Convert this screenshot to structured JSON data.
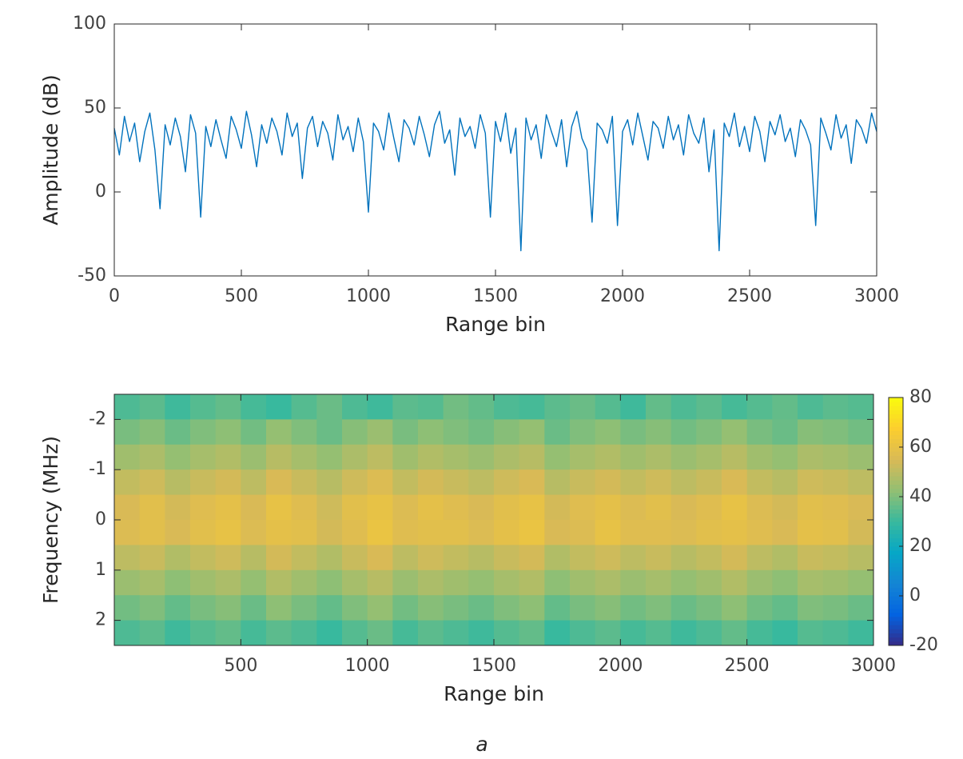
{
  "caption": "a",
  "chart_data": [
    {
      "type": "line",
      "xlabel": "Range bin",
      "ylabel": "Amplitude (dB)",
      "xlim": [
        0,
        3000
      ],
      "ylim": [
        -50,
        100
      ],
      "xticks": [
        0,
        500,
        1000,
        1500,
        2000,
        2500,
        3000
      ],
      "yticks": [
        -50,
        0,
        50,
        100
      ],
      "x": [
        0,
        20,
        40,
        60,
        80,
        100,
        120,
        140,
        160,
        180,
        200,
        220,
        240,
        260,
        280,
        300,
        320,
        340,
        360,
        380,
        400,
        420,
        440,
        460,
        480,
        500,
        520,
        540,
        560,
        580,
        600,
        620,
        640,
        660,
        680,
        700,
        720,
        740,
        760,
        780,
        800,
        820,
        840,
        860,
        880,
        900,
        920,
        940,
        960,
        980,
        1000,
        1020,
        1040,
        1060,
        1080,
        1100,
        1120,
        1140,
        1160,
        1180,
        1200,
        1220,
        1240,
        1260,
        1280,
        1300,
        1320,
        1340,
        1360,
        1380,
        1400,
        1420,
        1440,
        1460,
        1480,
        1500,
        1520,
        1540,
        1560,
        1580,
        1600,
        1620,
        1640,
        1660,
        1680,
        1700,
        1720,
        1740,
        1760,
        1780,
        1800,
        1820,
        1840,
        1860,
        1880,
        1900,
        1920,
        1940,
        1960,
        1980,
        2000,
        2020,
        2040,
        2060,
        2080,
        2100,
        2120,
        2140,
        2160,
        2180,
        2200,
        2220,
        2240,
        2260,
        2280,
        2300,
        2320,
        2340,
        2360,
        2380,
        2400,
        2420,
        2440,
        2460,
        2480,
        2500,
        2520,
        2540,
        2560,
        2580,
        2600,
        2620,
        2640,
        2660,
        2680,
        2700,
        2720,
        2740,
        2760,
        2780,
        2800,
        2820,
        2840,
        2860,
        2880,
        2900,
        2920,
        2940,
        2960,
        2980,
        3000
      ],
      "series": [
        {
          "color": "#0072bd",
          "values": [
            38,
            22,
            45,
            30,
            41,
            18,
            36,
            47,
            25,
            -10,
            40,
            28,
            44,
            33,
            12,
            46,
            35,
            -15,
            39,
            27,
            43,
            31,
            20,
            45,
            37,
            26,
            48,
            34,
            15,
            40,
            29,
            44,
            36,
            22,
            47,
            33,
            41,
            8,
            38,
            45,
            27,
            42,
            35,
            19,
            46,
            31,
            39,
            24,
            44,
            30,
            -12,
            41,
            36,
            25,
            47,
            32,
            18,
            43,
            38,
            28,
            45,
            34,
            21,
            40,
            48,
            29,
            37,
            10,
            44,
            33,
            39,
            26,
            46,
            35,
            -15,
            42,
            30,
            47,
            23,
            38,
            -35,
            44,
            31,
            40,
            20,
            46,
            36,
            27,
            43,
            15,
            39,
            48,
            32,
            25,
            -18,
            41,
            37,
            29,
            45,
            -20,
            36,
            43,
            28,
            47,
            33,
            19,
            42,
            38,
            26,
            45,
            31,
            40,
            22,
            46,
            35,
            29,
            44,
            12,
            37,
            -35,
            41,
            33,
            47,
            27,
            39,
            24,
            45,
            36,
            18,
            42,
            34,
            46,
            30,
            38,
            21,
            43,
            37,
            28,
            -20,
            44,
            35,
            25,
            46,
            32,
            40,
            17,
            43,
            38,
            29,
            47,
            36
          ]
        }
      ]
    },
    {
      "type": "heatmap",
      "xlabel": "Range bin",
      "ylabel": "Frequency (MHz)",
      "xlim": [
        0,
        3000
      ],
      "ylim": [
        -2.5,
        2.5
      ],
      "y_reversed": true,
      "xticks": [
        500,
        1000,
        1500,
        2000,
        2500,
        3000
      ],
      "yticks": [
        -2,
        -1,
        0,
        1,
        2
      ],
      "clim": [
        -20,
        80
      ],
      "cticks": [
        -20,
        0,
        20,
        40,
        60,
        80
      ],
      "colormap": [
        "#352a87",
        "#0363e1",
        "#1485d4",
        "#06a7c6",
        "#38b99e",
        "#92bf73",
        "#d9ba56",
        "#fcce2e",
        "#f9fb0e"
      ],
      "x": [
        50,
        150,
        250,
        350,
        450,
        550,
        650,
        750,
        850,
        950,
        1050,
        1150,
        1250,
        1350,
        1450,
        1550,
        1650,
        1750,
        1850,
        1950,
        2050,
        2150,
        2250,
        2350,
        2450,
        2550,
        2650,
        2750,
        2850,
        2950
      ],
      "y": [
        -2.25,
        -1.75,
        -1.25,
        -0.75,
        -0.25,
        0.25,
        0.75,
        1.25,
        1.75,
        2.25
      ],
      "z": [
        [
          33,
          35,
          31,
          34,
          36,
          32,
          30,
          34,
          37,
          33,
          31,
          35,
          34,
          38,
          36,
          33,
          32,
          35,
          37,
          34,
          31,
          36,
          33,
          35,
          32,
          34,
          36,
          33,
          35,
          34
        ],
        [
          39,
          41,
          37,
          40,
          42,
          38,
          43,
          40,
          37,
          41,
          44,
          39,
          42,
          40,
          38,
          41,
          43,
          37,
          40,
          42,
          39,
          41,
          38,
          40,
          43,
          39,
          37,
          41,
          40,
          38
        ],
        [
          45,
          47,
          43,
          46,
          48,
          44,
          49,
          46,
          43,
          47,
          50,
          45,
          48,
          46,
          44,
          47,
          49,
          43,
          46,
          48,
          45,
          47,
          44,
          46,
          49,
          45,
          43,
          47,
          46,
          44
        ],
        [
          51,
          53,
          49,
          52,
          54,
          50,
          55,
          52,
          49,
          53,
          56,
          51,
          54,
          52,
          50,
          53,
          55,
          49,
          52,
          54,
          51,
          53,
          50,
          52,
          55,
          51,
          49,
          53,
          52,
          50
        ],
        [
          55,
          58,
          54,
          57,
          59,
          55,
          60,
          57,
          53,
          58,
          60,
          56,
          59,
          57,
          55,
          58,
          60,
          54,
          57,
          59,
          56,
          58,
          55,
          57,
          60,
          56,
          54,
          58,
          57,
          55
        ],
        [
          56,
          58,
          55,
          58,
          60,
          56,
          59,
          58,
          54,
          57,
          61,
          57,
          58,
          58,
          56,
          59,
          61,
          55,
          56,
          60,
          57,
          57,
          56,
          58,
          59,
          57,
          55,
          59,
          58,
          54
        ],
        [
          50,
          52,
          48,
          51,
          53,
          49,
          54,
          51,
          48,
          52,
          55,
          50,
          53,
          51,
          49,
          52,
          54,
          48,
          51,
          53,
          50,
          52,
          49,
          51,
          54,
          50,
          48,
          52,
          51,
          49
        ],
        [
          44,
          46,
          42,
          45,
          47,
          43,
          48,
          45,
          42,
          46,
          49,
          44,
          47,
          45,
          43,
          46,
          48,
          42,
          45,
          47,
          44,
          46,
          43,
          45,
          48,
          44,
          42,
          46,
          45,
          43
        ],
        [
          38,
          40,
          36,
          39,
          41,
          37,
          42,
          39,
          36,
          40,
          43,
          38,
          41,
          39,
          37,
          40,
          42,
          36,
          39,
          41,
          38,
          40,
          37,
          39,
          42,
          38,
          36,
          40,
          39,
          37
        ],
        [
          33,
          35,
          31,
          34,
          36,
          32,
          35,
          33,
          30,
          34,
          37,
          32,
          35,
          33,
          31,
          34,
          36,
          30,
          33,
          35,
          32,
          34,
          31,
          33,
          36,
          32,
          30,
          34,
          33,
          31
        ]
      ]
    }
  ]
}
